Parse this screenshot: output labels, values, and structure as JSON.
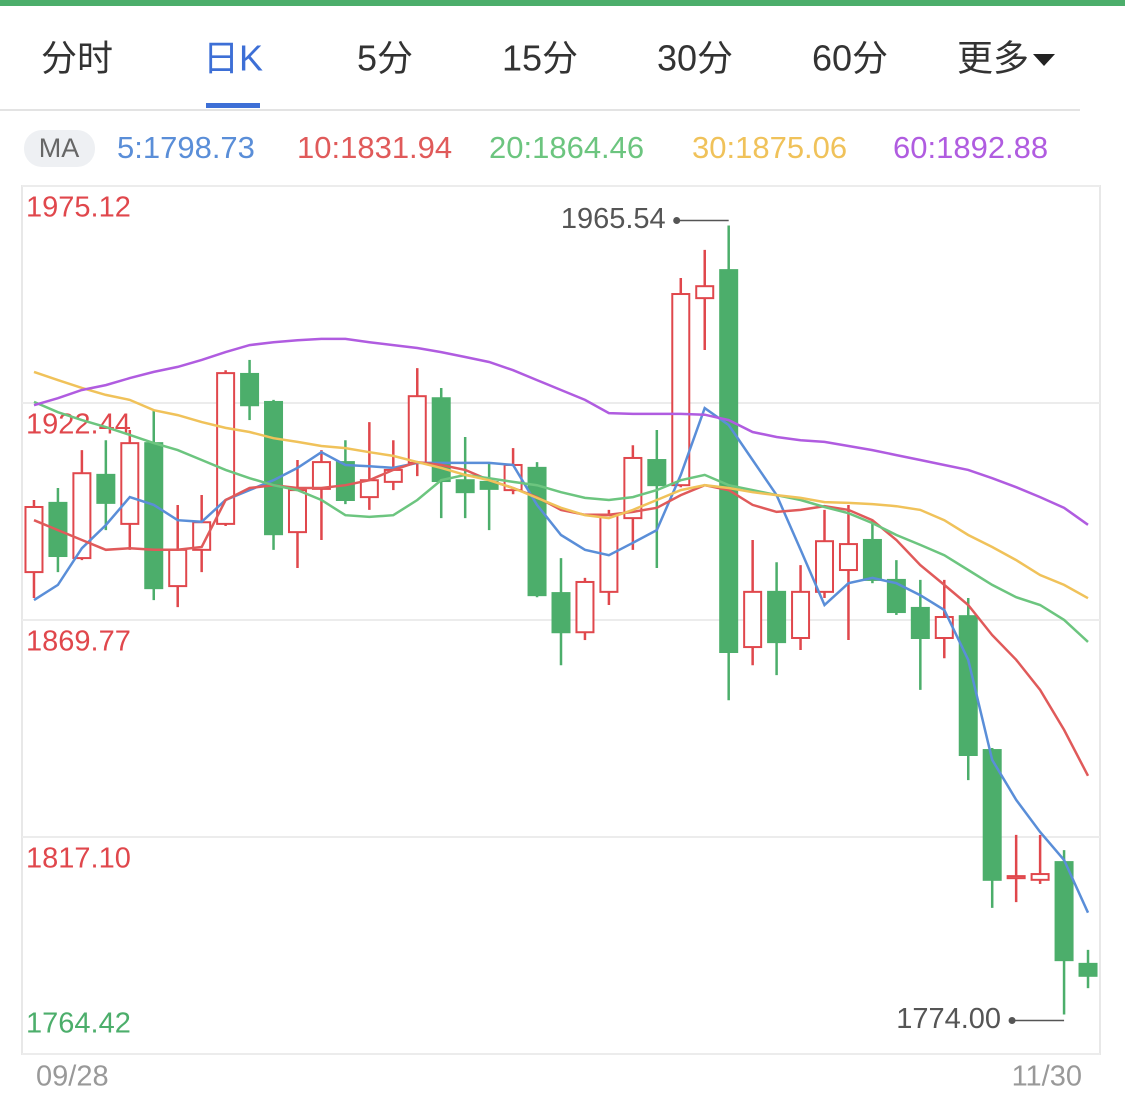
{
  "tabs": {
    "items": [
      "分时",
      "日K",
      "5分",
      "15分",
      "30分",
      "60分",
      "更多"
    ],
    "active": 1
  },
  "chart_data": {
    "type": "candlestick",
    "categories": [
      "09/28",
      null,
      null,
      null,
      null,
      null,
      null,
      null,
      null,
      null,
      null,
      null,
      null,
      null,
      null,
      null,
      null,
      null,
      null,
      null,
      null,
      null,
      null,
      null,
      null,
      null,
      null,
      null,
      null,
      null,
      null,
      null,
      null,
      null,
      null,
      null,
      null,
      null,
      null,
      null,
      null,
      null,
      null,
      null,
      "11/30"
    ],
    "open": [
      1881.4,
      1898.2,
      1884.8,
      1905.0,
      1893.1,
      1912.7,
      1878.0,
      1886.8,
      1893.1,
      1929.5,
      1922.7,
      1891.1,
      1901.6,
      1908.1,
      1899.6,
      1903.3,
      1907.9,
      1923.6,
      1903.7,
      1903.3,
      1901.3,
      1906.7,
      1876.3,
      1866.8,
      1876.6,
      1894.5,
      1908.6,
      1902.5,
      1947.9,
      1954.7,
      1863.2,
      1876.6,
      1865.4,
      1876.6,
      1881.9,
      1889.2,
      1879.5,
      1872.7,
      1865.4,
      1870.7,
      1838.2,
      1807.1,
      1806.7,
      1811.0,
      1786.3
    ],
    "close": [
      1897.2,
      1885.3,
      1905.4,
      1898.2,
      1912.7,
      1877.5,
      1886.8,
      1893.5,
      1929.7,
      1921.9,
      1890.6,
      1901.3,
      1908.1,
      1898.9,
      1903.7,
      1906.2,
      1924.1,
      1903.5,
      1900.8,
      1901.6,
      1907.4,
      1875.8,
      1866.8,
      1879.0,
      1895.2,
      1909.1,
      1902.5,
      1948.9,
      1950.8,
      1862.0,
      1876.6,
      1864.4,
      1876.6,
      1888.9,
      1888.2,
      1879.5,
      1871.7,
      1865.4,
      1870.5,
      1837.0,
      1806.7,
      1807.6,
      1808.1,
      1787.2,
      1783.4
    ],
    "high": [
      1898.9,
      1901.8,
      1911.0,
      1913.4,
      1915.9,
      1920.7,
      1897.7,
      1900.1,
      1930.4,
      1932.9,
      1923.2,
      1908.6,
      1911.0,
      1913.4,
      1917.8,
      1913.4,
      1930.9,
      1926.1,
      1914.2,
      1908.1,
      1911.5,
      1908.1,
      1884.8,
      1880.0,
      1896.5,
      1912.2,
      1915.9,
      1952.8,
      1959.6,
      1965.54,
      1889.2,
      1883.8,
      1883.1,
      1896.5,
      1897.7,
      1894.0,
      1884.3,
      1879.5,
      1879.5,
      1875.1,
      1838.7,
      1817.6,
      1817.6,
      1813.9,
      1789.7
    ],
    "low": [
      1875.1,
      1881.4,
      1884.3,
      1891.6,
      1886.8,
      1874.6,
      1872.9,
      1881.4,
      1892.6,
      1918.3,
      1886.8,
      1882.4,
      1889.2,
      1897.9,
      1896.5,
      1901.3,
      1904.7,
      1894.5,
      1894.5,
      1891.6,
      1900.3,
      1875.3,
      1858.8,
      1864.9,
      1873.4,
      1886.8,
      1882.4,
      1902.0,
      1935.3,
      1850.3,
      1858.8,
      1856.4,
      1862.5,
      1875.1,
      1864.9,
      1878.7,
      1871.0,
      1852.8,
      1860.5,
      1830.9,
      1799.9,
      1801.3,
      1805.7,
      1774.0,
      1780.4
    ],
    "up_color": "#e0474c",
    "down_color": "#4cae6b",
    "ma_label": "MA",
    "series": [
      {
        "name": "5:1798.73",
        "color": "#5a8ed8",
        "values": [
          1874.6,
          1878.3,
          1887.2,
          1892.8,
          1899.6,
          1897.7,
          1894.0,
          1893.6,
          1898.9,
          1901.3,
          1903.7,
          1906.7,
          1910.5,
          1907.4,
          1907.1,
          1906.7,
          1907.9,
          1907.9,
          1907.9,
          1907.9,
          1907.4,
          1897.7,
          1890.4,
          1886.8,
          1885.5,
          1888.5,
          1891.6,
          1905.0,
          1921.2,
          1917.1,
          1908.6,
          1900.1,
          1886.8,
          1873.4,
          1878.7,
          1880.0,
          1878.7,
          1875.8,
          1872.2,
          1860.1,
          1835.8,
          1826.1,
          1818.3,
          1811.5,
          1798.73
        ]
      },
      {
        "name": "10:1831.94",
        "color": "#e05a5a",
        "values": [
          1894.0,
          1891.6,
          1889.2,
          1886.8,
          1887.2,
          1886.8,
          1886.8,
          1887.5,
          1898.9,
          1901.8,
          1902.5,
          1901.8,
          1901.8,
          1902.5,
          1903.7,
          1906.2,
          1908.1,
          1907.4,
          1906.2,
          1903.7,
          1901.8,
          1899.6,
          1896.5,
          1895.3,
          1895.3,
          1896.0,
          1897.0,
          1900.1,
          1902.5,
          1901.3,
          1897.7,
          1896.0,
          1896.5,
          1897.4,
          1896.5,
          1894.0,
          1889.2,
          1883.1,
          1878.3,
          1873.4,
          1866.1,
          1860.1,
          1852.8,
          1843.1,
          1831.94
        ]
      },
      {
        "name": "20:1864.46",
        "color": "#6cc57f",
        "values": [
          1922.7,
          1920.2,
          1918.3,
          1916.6,
          1914.7,
          1912.7,
          1911.0,
          1908.6,
          1906.2,
          1904.2,
          1902.5,
          1901.3,
          1898.9,
          1895.2,
          1894.8,
          1895.2,
          1898.9,
          1903.7,
          1905.0,
          1904.2,
          1903.3,
          1902.5,
          1900.8,
          1899.4,
          1898.9,
          1899.6,
          1901.3,
          1903.7,
          1905.0,
          1902.5,
          1901.3,
          1900.1,
          1898.9,
          1897.2,
          1895.7,
          1893.3,
          1890.4,
          1888.0,
          1885.5,
          1881.9,
          1878.3,
          1875.3,
          1873.4,
          1869.8,
          1864.46
        ]
      },
      {
        "name": "30:1875.06",
        "color": "#f0c25a",
        "values": [
          1930.0,
          1928.0,
          1926.1,
          1924.4,
          1923.2,
          1920.7,
          1919.5,
          1917.8,
          1916.4,
          1915.4,
          1913.9,
          1913.0,
          1912.0,
          1911.5,
          1910.5,
          1909.6,
          1908.1,
          1906.7,
          1905.0,
          1903.7,
          1901.8,
          1899.4,
          1897.0,
          1895.2,
          1894.5,
          1896.5,
          1898.9,
          1901.3,
          1902.5,
          1901.8,
          1900.8,
          1900.1,
          1899.4,
          1898.4,
          1898.2,
          1897.9,
          1897.4,
          1896.5,
          1894.0,
          1890.4,
          1887.5,
          1884.3,
          1880.7,
          1878.3,
          1875.06
        ]
      },
      {
        "name": "60:1892.88",
        "color": "#b05ce0",
        "values": [
          1921.9,
          1923.6,
          1925.6,
          1926.8,
          1928.5,
          1930.0,
          1931.2,
          1932.9,
          1934.8,
          1936.5,
          1937.2,
          1937.7,
          1938.0,
          1938.0,
          1937.2,
          1936.5,
          1935.8,
          1934.8,
          1933.6,
          1932.4,
          1930.4,
          1928.0,
          1925.6,
          1923.2,
          1920.0,
          1919.8,
          1919.8,
          1919.8,
          1919.6,
          1918.3,
          1915.4,
          1914.2,
          1913.4,
          1913.0,
          1912.0,
          1911.0,
          1909.8,
          1908.6,
          1907.4,
          1906.2,
          1904.2,
          1902.0,
          1899.6,
          1897.0,
          1892.88
        ]
      }
    ],
    "ylim": [
      1764.42,
      1975.12
    ],
    "yticks": [
      1975.12,
      1922.44,
      1869.77,
      {
        "value": 1817.1,
        "label": "1817.10"
      },
      1764.42
    ],
    "annotations": [
      "1965.54",
      "1774.00"
    ],
    "grid": true
  }
}
